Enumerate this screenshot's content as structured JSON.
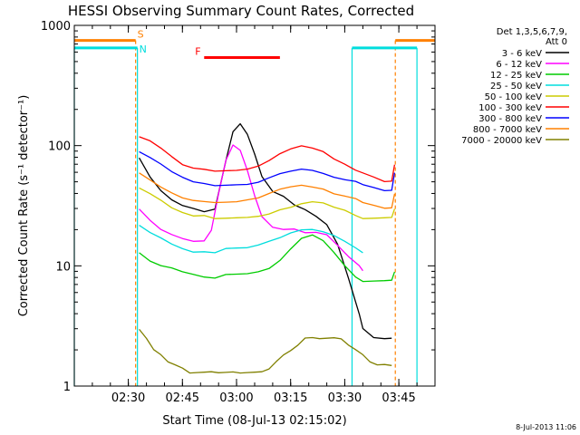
{
  "chart_data": {
    "type": "line",
    "title": "HESSI Observing Summary Count Rates, Corrected",
    "xlabel": "Start Time (08-Jul-13 02:15:02)",
    "ylabel": "Corrected Count Rate (s⁻¹ detector⁻¹)",
    "yscale": "log",
    "ylim": [
      1,
      1000
    ],
    "xlim_minutes": [
      0,
      100
    ],
    "x_ticks": [
      {
        "label": "02:30",
        "minutes": 14.97
      },
      {
        "label": "02:45",
        "minutes": 29.97
      },
      {
        "label": "03:00",
        "minutes": 44.97
      },
      {
        "label": "03:15",
        "minutes": 59.97
      },
      {
        "label": "03:30",
        "minutes": 74.97
      },
      {
        "label": "03:45",
        "minutes": 89.97
      }
    ],
    "y_ticks": [
      {
        "label": "1",
        "value": 1
      },
      {
        "label": "10",
        "value": 10
      },
      {
        "label": "100",
        "value": 100
      },
      {
        "label": "1000",
        "value": 1000
      }
    ],
    "legend_header": [
      "Det 1,3,5,6,7,9,",
      "Att 0"
    ],
    "legend_placement": "right",
    "timestamp": "8-Jul-2013 11:06",
    "series": [
      {
        "name": "3 - 6 keV",
        "color": "#000000",
        "x": [
          18,
          21,
          24,
          27,
          30,
          33,
          36,
          39,
          42,
          44,
          46,
          48,
          50,
          52,
          55,
          58,
          61,
          64,
          67,
          70,
          73,
          76,
          79,
          80,
          83,
          86,
          88
        ],
        "y": [
          80,
          55,
          42,
          35,
          32,
          30,
          28,
          30,
          75,
          130,
          150,
          125,
          85,
          55,
          42,
          38,
          32,
          29,
          26,
          22,
          15,
          8,
          4,
          3,
          2.5,
          2.5,
          2.5
        ]
      },
      {
        "name": "6 - 12 keV",
        "color": "#ff00ff",
        "x": [
          18,
          21,
          24,
          27,
          30,
          33,
          36,
          38,
          40,
          42,
          44,
          46,
          48,
          50,
          52,
          55,
          58,
          61,
          64,
          67,
          70,
          73,
          76,
          79,
          80
        ],
        "y": [
          30,
          24,
          20,
          18,
          17,
          16,
          16,
          20,
          40,
          75,
          100,
          92,
          62,
          38,
          26,
          21,
          20,
          20,
          19,
          19,
          18,
          15,
          12,
          10,
          9
        ]
      },
      {
        "name": "12 - 25 keV",
        "color": "#00cc00",
        "x": [
          18,
          21,
          24,
          27,
          30,
          33,
          36,
          39,
          42,
          45,
          48,
          51,
          54,
          57,
          60,
          63,
          66,
          69,
          72,
          75,
          78,
          80,
          83,
          86,
          88,
          88.8
        ],
        "y": [
          13,
          11,
          10,
          9.5,
          9,
          8.5,
          8,
          8,
          8.5,
          8.5,
          8.5,
          9,
          9.5,
          11,
          14,
          17,
          18,
          16,
          13,
          10,
          8,
          7.5,
          7.5,
          7.5,
          7.5,
          9
        ]
      },
      {
        "name": "25 - 50 keV",
        "color": "#00dddd",
        "x": [
          18,
          21,
          24,
          27,
          30,
          33,
          36,
          39,
          42,
          45,
          48,
          51,
          54,
          57,
          60,
          63,
          66,
          69,
          72,
          75,
          78,
          80
        ],
        "y": [
          22,
          19,
          17,
          15,
          14,
          13,
          13,
          13,
          14,
          14,
          14,
          15,
          16,
          17,
          19,
          20,
          20,
          19,
          18,
          16,
          14,
          13
        ]
      },
      {
        "name": "50 - 100 keV",
        "color": "#cccc00",
        "x": [
          18,
          21,
          24,
          27,
          30,
          33,
          36,
          39,
          42,
          45,
          48,
          51,
          54,
          57,
          60,
          63,
          66,
          69,
          72,
          75,
          78,
          80,
          83,
          86,
          88,
          88.8
        ],
        "y": [
          45,
          40,
          35,
          30,
          28,
          26,
          26,
          25,
          25,
          25,
          25,
          26,
          27,
          29,
          31,
          33,
          34,
          33,
          31,
          29,
          26,
          25,
          25,
          25,
          25,
          30
        ]
      },
      {
        "name": "100 - 300 keV",
        "color": "#ff0000",
        "x": [
          18,
          21,
          24,
          27,
          30,
          33,
          36,
          39,
          42,
          45,
          48,
          51,
          54,
          57,
          60,
          63,
          66,
          69,
          72,
          75,
          78,
          80,
          83,
          86,
          88,
          88.8
        ],
        "y": [
          120,
          110,
          95,
          80,
          70,
          65,
          63,
          62,
          62,
          62,
          63,
          68,
          75,
          85,
          95,
          100,
          95,
          88,
          78,
          70,
          62,
          60,
          55,
          50,
          50,
          70
        ]
      },
      {
        "name": "300 - 800 keV",
        "color": "#0000ff",
        "x": [
          18,
          21,
          24,
          27,
          30,
          33,
          36,
          39,
          42,
          45,
          48,
          51,
          54,
          57,
          60,
          63,
          66,
          69,
          72,
          75,
          78,
          80,
          83,
          86,
          88,
          88.8
        ],
        "y": [
          90,
          80,
          70,
          60,
          55,
          50,
          48,
          47,
          47,
          47,
          47,
          50,
          54,
          58,
          62,
          64,
          62,
          58,
          55,
          52,
          50,
          48,
          45,
          42,
          42,
          60
        ]
      },
      {
        "name": "800 - 7000 keV",
        "color": "#ff8000",
        "x": [
          18,
          21,
          24,
          27,
          30,
          33,
          36,
          39,
          42,
          45,
          48,
          51,
          54,
          57,
          60,
          63,
          66,
          69,
          72,
          75,
          78,
          80,
          83,
          86,
          88,
          88.8
        ],
        "y": [
          60,
          52,
          45,
          40,
          37,
          35,
          34,
          34,
          34,
          34,
          35,
          37,
          40,
          43,
          46,
          47,
          45,
          43,
          40,
          38,
          36,
          34,
          32,
          30,
          30,
          40
        ]
      },
      {
        "name": "7000 - 20000 keV",
        "color": "#808000",
        "x": [
          18,
          20,
          22,
          24,
          26,
          28,
          30,
          32,
          34,
          36,
          38,
          40,
          42,
          44,
          46,
          48,
          50,
          52,
          54,
          56,
          58,
          60,
          62,
          64,
          66,
          68,
          70,
          72,
          74,
          76,
          78,
          80,
          82,
          84,
          86,
          88
        ],
        "y": [
          3,
          2.5,
          2,
          1.8,
          1.6,
          1.5,
          1.4,
          1.3,
          1.3,
          1.3,
          1.3,
          1.3,
          1.3,
          1.3,
          1.3,
          1.3,
          1.3,
          1.3,
          1.4,
          1.6,
          1.8,
          2,
          2.2,
          2.5,
          2.5,
          2.5,
          2.5,
          2.5,
          2.5,
          2.2,
          2,
          1.8,
          1.6,
          1.5,
          1.5,
          1.5
        ]
      }
    ],
    "flags": [
      {
        "label": "S",
        "color": "#ff8000",
        "value": 750,
        "segments": [
          [
            0,
            17
          ],
          [
            89,
            100
          ]
        ],
        "boundaries": [
          17,
          89
        ]
      },
      {
        "label": "N",
        "color": "#00dddd",
        "value": 650,
        "segments": [
          [
            0,
            17.5
          ],
          [
            77,
            95
          ]
        ],
        "boundaries": [
          0,
          17.5,
          77,
          95
        ]
      },
      {
        "label": "F",
        "color": "#ff0000",
        "value": 540,
        "segments": [
          [
            36,
            57
          ]
        ]
      }
    ]
  }
}
